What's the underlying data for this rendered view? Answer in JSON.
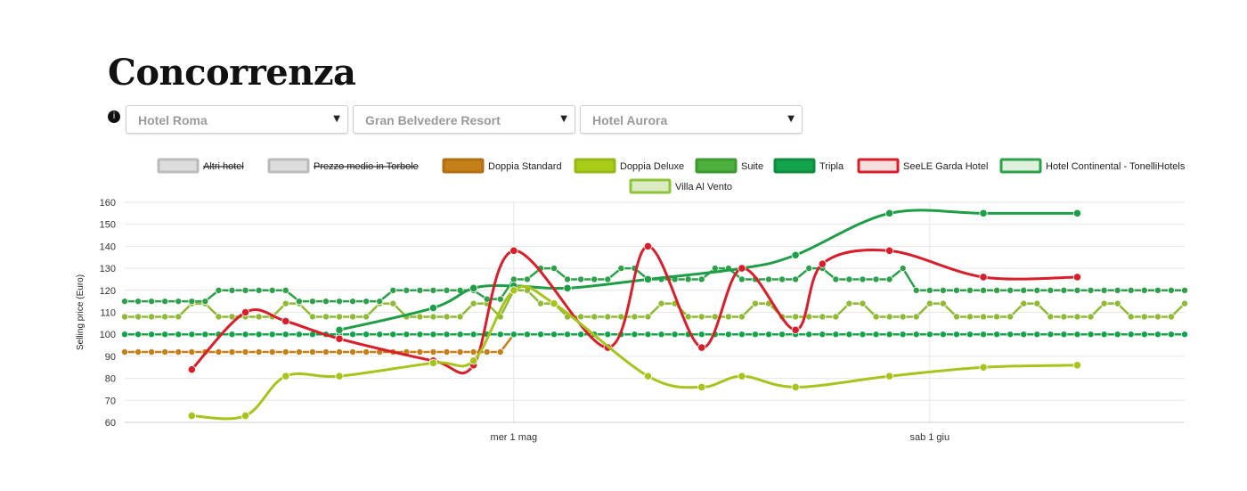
{
  "page": {
    "title": "Concorrenza",
    "info_icon": "info-icon"
  },
  "selects": [
    {
      "value": "Hotel Roma"
    },
    {
      "value": "Gran Belvedere Resort"
    },
    {
      "value": "Hotel Aurora"
    }
  ],
  "chart_data": {
    "type": "line",
    "ylabel": "Selling price (Euro)",
    "ylim": [
      60,
      160
    ],
    "yticks": [
      60,
      70,
      80,
      90,
      100,
      110,
      120,
      130,
      140,
      150,
      160
    ],
    "xlim": [
      "2024-04-02",
      "2024-06-20"
    ],
    "xticks": [
      {
        "x": "2024-05-01",
        "label": "mer 1 mag"
      },
      {
        "x": "2024-06-01",
        "label": "sab 1 giu"
      }
    ],
    "grid": true,
    "legend_position": "top-center",
    "legend": [
      {
        "name": "Altri hotel",
        "color": "#dddddd",
        "border": "#bbbbbb",
        "hidden": true
      },
      {
        "name": "Prezzo medio in Torbole",
        "color": "#dddddd",
        "border": "#bbbbbb",
        "hidden": true
      },
      {
        "name": "Doppia Standard",
        "color": "#c57f19",
        "border": "#b06f10"
      },
      {
        "name": "Doppia Deluxe",
        "color": "#a8cc17",
        "border": "#96b814"
      },
      {
        "name": "Suite",
        "color": "#4caf3e",
        "border": "#3d9a31"
      },
      {
        "name": "Tripla",
        "color": "#13a34a",
        "border": "#0f8c3e"
      },
      {
        "name": "SeeLE Garda Hotel",
        "color": "#f5dede",
        "border": "#d91e2a"
      },
      {
        "name": "Hotel Continental - TonelliHotels",
        "color": "#dff0dc",
        "border": "#2ea04a"
      },
      {
        "name": "Villa Al Vento",
        "color": "#dcebc4",
        "border": "#8dc43a"
      }
    ],
    "series": [
      {
        "name": "Doppia Standard",
        "color": "#c57f19",
        "smooth": false,
        "markers": "dense",
        "points": [
          [
            "2024-04-02",
            92
          ],
          [
            "2024-04-30",
            92
          ],
          [
            "2024-05-01",
            100
          ],
          [
            "2024-06-20",
            100
          ]
        ]
      },
      {
        "name": "Tripla",
        "color": "#13a34a",
        "smooth": false,
        "markers": "dense",
        "points": [
          [
            "2024-04-02",
            100
          ],
          [
            "2024-06-20",
            100
          ]
        ]
      },
      {
        "name": "Villa Al Vento",
        "color": "#8fba35",
        "smooth": false,
        "markers": "dense",
        "points": [
          [
            "2024-04-02",
            108
          ],
          [
            "2024-04-06",
            108
          ],
          [
            "2024-04-07",
            114
          ],
          [
            "2024-04-08",
            114
          ],
          [
            "2024-04-09",
            108
          ],
          [
            "2024-04-13",
            108
          ],
          [
            "2024-04-14",
            114
          ],
          [
            "2024-04-15",
            114
          ],
          [
            "2024-04-16",
            108
          ],
          [
            "2024-04-20",
            108
          ],
          [
            "2024-04-21",
            114
          ],
          [
            "2024-04-22",
            114
          ],
          [
            "2024-04-23",
            108
          ],
          [
            "2024-04-27",
            108
          ],
          [
            "2024-04-28",
            114
          ],
          [
            "2024-04-29",
            114
          ],
          [
            "2024-04-30",
            108
          ],
          [
            "2024-05-01",
            120
          ],
          [
            "2024-05-02",
            120
          ],
          [
            "2024-05-03",
            114
          ],
          [
            "2024-05-04",
            114
          ],
          [
            "2024-05-05",
            108
          ],
          [
            "2024-05-11",
            108
          ],
          [
            "2024-05-12",
            114
          ],
          [
            "2024-05-13",
            114
          ],
          [
            "2024-05-14",
            108
          ],
          [
            "2024-05-18",
            108
          ],
          [
            "2024-05-19",
            114
          ],
          [
            "2024-05-20",
            114
          ],
          [
            "2024-05-21",
            108
          ],
          [
            "2024-05-25",
            108
          ],
          [
            "2024-05-26",
            114
          ],
          [
            "2024-05-27",
            114
          ],
          [
            "2024-05-28",
            108
          ],
          [
            "2024-05-31",
            108
          ],
          [
            "2024-06-01",
            114
          ],
          [
            "2024-06-02",
            114
          ],
          [
            "2024-06-03",
            108
          ],
          [
            "2024-06-07",
            108
          ],
          [
            "2024-06-08",
            114
          ],
          [
            "2024-06-09",
            114
          ],
          [
            "2024-06-10",
            108
          ],
          [
            "2024-06-13",
            108
          ],
          [
            "2024-06-14",
            114
          ],
          [
            "2024-06-15",
            114
          ],
          [
            "2024-06-16",
            108
          ],
          [
            "2024-06-19",
            108
          ],
          [
            "2024-06-20",
            114
          ]
        ]
      },
      {
        "name": "Hotel Continental - TonelliHotels",
        "color": "#2ea04a",
        "smooth": false,
        "markers": "dense",
        "points": [
          [
            "2024-04-02",
            115
          ],
          [
            "2024-04-08",
            115
          ],
          [
            "2024-04-09",
            120
          ],
          [
            "2024-04-14",
            120
          ],
          [
            "2024-04-15",
            115
          ],
          [
            "2024-04-21",
            115
          ],
          [
            "2024-04-22",
            120
          ],
          [
            "2024-04-28",
            120
          ],
          [
            "2024-04-29",
            116
          ],
          [
            "2024-04-30",
            116
          ],
          [
            "2024-05-01",
            125
          ],
          [
            "2024-05-02",
            125
          ],
          [
            "2024-05-03",
            130
          ],
          [
            "2024-05-04",
            130
          ],
          [
            "2024-05-05",
            125
          ],
          [
            "2024-05-08",
            125
          ],
          [
            "2024-05-09",
            130
          ],
          [
            "2024-05-10",
            130
          ],
          [
            "2024-05-11",
            125
          ],
          [
            "2024-05-15",
            125
          ],
          [
            "2024-05-16",
            130
          ],
          [
            "2024-05-17",
            130
          ],
          [
            "2024-05-18",
            125
          ],
          [
            "2024-05-22",
            125
          ],
          [
            "2024-05-23",
            130
          ],
          [
            "2024-05-24",
            130
          ],
          [
            "2024-05-25",
            125
          ],
          [
            "2024-05-29",
            125
          ],
          [
            "2024-05-30",
            130
          ],
          [
            "2024-05-31",
            120
          ],
          [
            "2024-06-20",
            120
          ]
        ]
      },
      {
        "name": "Suite",
        "color": "#1e9e46",
        "smooth": true,
        "markers": "sparse",
        "points": [
          [
            "2024-04-18",
            102
          ],
          [
            "2024-04-25",
            112
          ],
          [
            "2024-04-28",
            121
          ],
          [
            "2024-05-01",
            122
          ],
          [
            "2024-05-05",
            121
          ],
          [
            "2024-05-11",
            125
          ],
          [
            "2024-05-18",
            130
          ],
          [
            "2024-05-22",
            136
          ],
          [
            "2024-05-29",
            155
          ],
          [
            "2024-06-05",
            155
          ],
          [
            "2024-06-12",
            155
          ]
        ]
      },
      {
        "name": "SeeLE Garda Hotel",
        "color": "#d91e2a",
        "smooth": true,
        "markers": "sparse",
        "points": [
          [
            "2024-04-07",
            84
          ],
          [
            "2024-04-11",
            110
          ],
          [
            "2024-04-14",
            106
          ],
          [
            "2024-04-18",
            98
          ],
          [
            "2024-04-25",
            88
          ],
          [
            "2024-04-28",
            86
          ],
          [
            "2024-05-01",
            138
          ],
          [
            "2024-05-08",
            94
          ],
          [
            "2024-05-11",
            140
          ],
          [
            "2024-05-15",
            94
          ],
          [
            "2024-05-18",
            130
          ],
          [
            "2024-05-22",
            102
          ],
          [
            "2024-05-24",
            132
          ],
          [
            "2024-05-29",
            138
          ],
          [
            "2024-06-05",
            126
          ],
          [
            "2024-06-12",
            126
          ]
        ]
      },
      {
        "name": "Doppia Deluxe",
        "color": "#a8c41c",
        "smooth": true,
        "markers": "sparse",
        "points": [
          [
            "2024-04-07",
            63
          ],
          [
            "2024-04-11",
            63
          ],
          [
            "2024-04-14",
            81
          ],
          [
            "2024-04-18",
            81
          ],
          [
            "2024-04-25",
            87
          ],
          [
            "2024-04-28",
            88
          ],
          [
            "2024-05-01",
            120
          ],
          [
            "2024-05-04",
            114
          ],
          [
            "2024-05-11",
            81
          ],
          [
            "2024-05-15",
            76
          ],
          [
            "2024-05-18",
            81
          ],
          [
            "2024-05-22",
            76
          ],
          [
            "2024-05-29",
            81
          ],
          [
            "2024-06-05",
            85
          ],
          [
            "2024-06-12",
            86
          ]
        ]
      }
    ]
  }
}
